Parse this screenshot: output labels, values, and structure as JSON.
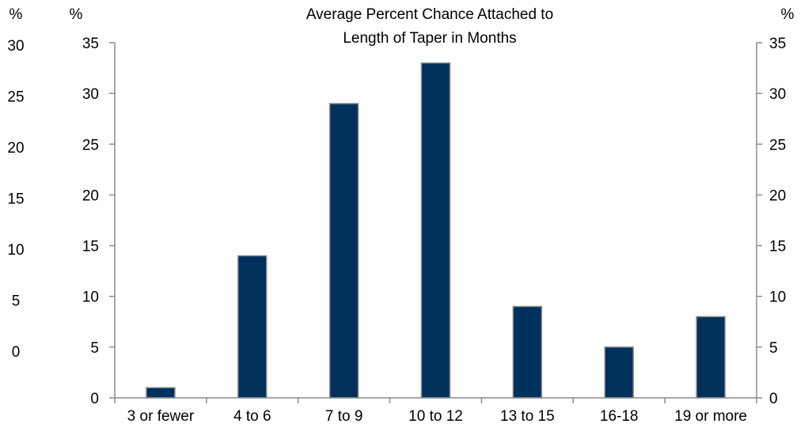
{
  "chart_data": {
    "type": "bar",
    "title_lines": [
      "Average Percent Chance Attached to",
      "Length of Taper in Months"
    ],
    "categories": [
      "3 or fewer",
      "4 to 6",
      "7 to 9",
      "10 to 12",
      "13 to 15",
      "16-18",
      "19 or more"
    ],
    "values": [
      1,
      14,
      29,
      33,
      9,
      5,
      8
    ],
    "bar_color": "#00305c",
    "bar_border_color": "#8c8c8c",
    "axis_color": "#8c8c8c",
    "grid": false,
    "axes": {
      "outer_left": {
        "unit_label": "%",
        "ticks": [
          "30",
          "25",
          "20",
          "15",
          "10",
          "5",
          "0"
        ]
      },
      "left": {
        "unit_label": "%",
        "ylim": [
          0,
          35
        ],
        "ticks": [
          "0",
          "5",
          "10",
          "15",
          "20",
          "25",
          "30",
          "35"
        ]
      },
      "right": {
        "unit_label": "%",
        "ylim": [
          0,
          35
        ],
        "ticks": [
          "0",
          "5",
          "10",
          "15",
          "20",
          "25",
          "30",
          "35"
        ]
      }
    }
  }
}
